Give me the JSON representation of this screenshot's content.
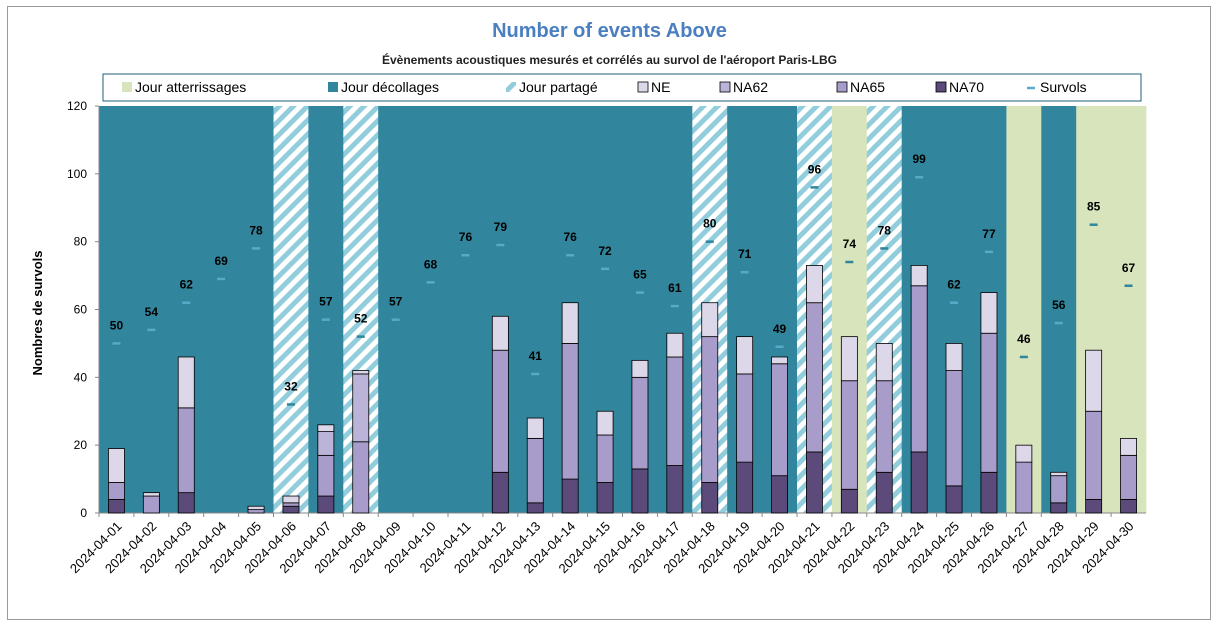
{
  "chart_data": {
    "type": "bar",
    "title": "Number of events Above",
    "subtitle": "Évènements acoustiques mesurés et corrélés au survol de l'aéroport Paris-LBG",
    "ylabel": "Nombres de survols",
    "xlabel": "",
    "ylim": [
      0,
      120
    ],
    "yticks": [
      0,
      20,
      40,
      60,
      80,
      100,
      120
    ],
    "legend_placement": "top",
    "legend": [
      "Jour atterrissages",
      "Jour décollages",
      "Jour partagé",
      "NE",
      "NA62",
      "NA65",
      "NA70",
      "Survols"
    ],
    "categories": [
      "2024-04-01",
      "2024-04-02",
      "2024-04-03",
      "2024-04-04",
      "2024-04-05",
      "2024-04-06",
      "2024-04-07",
      "2024-04-08",
      "2024-04-09",
      "2024-04-10",
      "2024-04-11",
      "2024-04-12",
      "2024-04-13",
      "2024-04-14",
      "2024-04-15",
      "2024-04-16",
      "2024-04-17",
      "2024-04-18",
      "2024-04-19",
      "2024-04-20",
      "2024-04-21",
      "2024-04-22",
      "2024-04-23",
      "2024-04-24",
      "2024-04-25",
      "2024-04-26",
      "2024-04-27",
      "2024-04-28",
      "2024-04-29",
      "2024-04-30"
    ],
    "day_type": [
      "D",
      "D",
      "D",
      "D",
      "D",
      "P",
      "D",
      "P",
      "D",
      "D",
      "D",
      "D",
      "D",
      "D",
      "D",
      "D",
      "D",
      "P",
      "D",
      "D",
      "P",
      "A",
      "P",
      "D",
      "D",
      "D",
      "A",
      "D",
      "A",
      "A"
    ],
    "series": [
      {
        "name": "NE",
        "values": [
          19,
          6,
          46,
          0,
          2,
          5,
          26,
          42,
          0,
          0,
          0,
          58,
          28,
          62,
          30,
          45,
          53,
          62,
          52,
          46,
          73,
          52,
          50,
          73,
          50,
          65,
          20,
          12,
          48,
          22
        ]
      },
      {
        "name": "NA62",
        "values": [
          9,
          5,
          31,
          0,
          1,
          3,
          24,
          41,
          0,
          0,
          0,
          48,
          22,
          50,
          23,
          40,
          46,
          52,
          41,
          44,
          62,
          39,
          39,
          67,
          42,
          53,
          15,
          11,
          30,
          17
        ]
      },
      {
        "name": "NA65",
        "values": [
          9,
          5,
          31,
          0,
          1,
          3,
          17,
          21,
          0,
          0,
          0,
          48,
          22,
          50,
          23,
          40,
          46,
          52,
          41,
          44,
          62,
          39,
          39,
          67,
          42,
          53,
          15,
          11,
          30,
          17
        ]
      },
      {
        "name": "NA70",
        "values": [
          4,
          0,
          6,
          0,
          0,
          2,
          5,
          0,
          0,
          0,
          0,
          12,
          3,
          10,
          9,
          13,
          14,
          9,
          15,
          11,
          18,
          7,
          12,
          18,
          8,
          12,
          0,
          3,
          4,
          4
        ]
      },
      {
        "name": "Survols",
        "values": [
          50,
          54,
          62,
          69,
          78,
          32,
          57,
          52,
          57,
          68,
          76,
          79,
          41,
          76,
          72,
          65,
          61,
          80,
          71,
          49,
          96,
          74,
          78,
          99,
          62,
          77,
          46,
          56,
          85,
          67
        ]
      }
    ],
    "colors": {
      "atterrissages": "#d8e4bc",
      "decollages": "#31859c",
      "partage_light": "#ffffff",
      "partage_stripe": "#92cddc",
      "NE": "#dcd8ea",
      "NA62": "#bcb4d8",
      "NA65": "#a89ccb",
      "NA70": "#5b4a7a",
      "survols_marker_dark": "#31859c",
      "survols_marker_light": "#5aa9c9",
      "title": "#4a7fc0"
    }
  }
}
